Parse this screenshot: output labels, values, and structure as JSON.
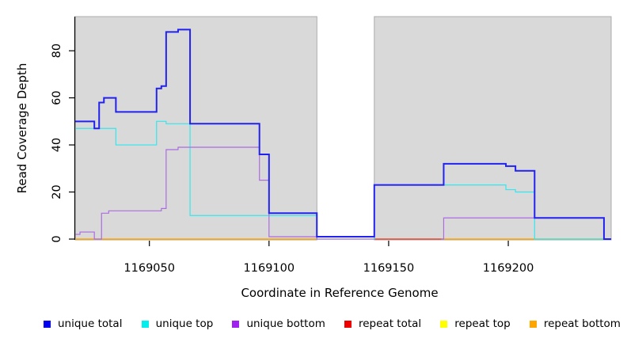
{
  "chart_data": {
    "type": "line",
    "subtype": "step-coverage-plot",
    "title": "",
    "xlabel": "Coordinate in Reference Genome",
    "ylabel": "Read Coverage Depth",
    "xlim": [
      1169019,
      1169243
    ],
    "ylim": [
      0,
      94.5
    ],
    "x_ticks": [
      1169050,
      1169100,
      1169150,
      1169200
    ],
    "y_ticks": [
      0,
      20,
      40,
      60,
      80
    ],
    "grid": false,
    "legend_position": "bottom",
    "band_color": "#d9d9d9",
    "band_border_color": "#ababab",
    "background_bands": [
      {
        "from": 1169019,
        "to": 1169120
      },
      {
        "from": 1169144,
        "to": 1169243
      }
    ],
    "series": [
      {
        "name": "repeat top",
        "color": "#FFFF00",
        "lw": 1.2,
        "segments": [
          {
            "steps": [
              [
                1169144,
                0
              ]
            ],
            "end": 1169173
          }
        ]
      },
      {
        "name": "repeat total",
        "color": "#E02830",
        "lw": 1.2,
        "segments": [
          {
            "steps": [
              [
                1169144,
                0
              ]
            ],
            "end": 1169173
          }
        ]
      },
      {
        "name": "repeat bottom",
        "color": "#FFA500",
        "lw": 1.5,
        "segments": [
          {
            "steps": [
              [
                1169019,
                0
              ]
            ],
            "end": 1169120
          },
          {
            "steps": [
              [
                1169173,
                0
              ]
            ],
            "end": 1169240
          }
        ]
      },
      {
        "name": "unique top",
        "color": "#30E8EE",
        "lw": 1.2,
        "segments": [
          {
            "steps": [
              [
                1169019,
                47
              ],
              [
                1169036,
                40
              ],
              [
                1169053,
                50
              ],
              [
                1169057,
                49
              ],
              [
                1169067,
                10
              ],
              [
                1169120,
                0
              ],
              [
                1169144,
                23
              ],
              [
                1169199,
                21
              ],
              [
                1169203,
                20
              ],
              [
                1169211,
                0
              ]
            ],
            "end": 1169243
          }
        ]
      },
      {
        "name": "unique bottom",
        "color": "#AC6CE0",
        "lw": 1.2,
        "segments": [
          {
            "steps": [
              [
                1169019,
                2
              ],
              [
                1169021,
                3
              ],
              [
                1169027,
                0
              ],
              [
                1169030,
                11
              ],
              [
                1169033,
                12
              ],
              [
                1169055,
                13
              ],
              [
                1169057,
                38
              ],
              [
                1169062,
                39
              ],
              [
                1169096,
                25
              ],
              [
                1169100,
                1
              ],
              [
                1169120,
                0
              ]
            ],
            "end": 1169144
          },
          {
            "steps": [
              [
                1169172,
                0
              ],
              [
                1169173,
                9
              ],
              [
                1169240,
                0
              ]
            ],
            "end": 1169243
          }
        ]
      },
      {
        "name": "unique total",
        "color": "#2222EE",
        "lw": 2,
        "segments": [
          {
            "steps": [
              [
                1169019,
                50
              ],
              [
                1169027,
                47
              ],
              [
                1169029,
                58
              ],
              [
                1169031,
                60
              ],
              [
                1169036,
                54
              ],
              [
                1169053,
                64
              ],
              [
                1169055,
                65
              ],
              [
                1169057,
                88
              ],
              [
                1169062,
                89
              ],
              [
                1169067,
                49
              ],
              [
                1169096,
                36
              ],
              [
                1169100,
                11
              ],
              [
                1169120,
                1
              ],
              [
                1169144,
                23
              ],
              [
                1169173,
                32
              ],
              [
                1169199,
                31
              ],
              [
                1169203,
                29
              ],
              [
                1169211,
                9
              ],
              [
                1169240,
                0
              ]
            ],
            "end": 1169243
          }
        ]
      }
    ],
    "legend": [
      {
        "label": "unique total",
        "color": "#0000EE"
      },
      {
        "label": "unique top",
        "color": "#00EEEE"
      },
      {
        "label": "unique bottom",
        "color": "#A020F0"
      },
      {
        "label": "repeat total",
        "color": "#EE0000"
      },
      {
        "label": "repeat top",
        "color": "#FFFF00"
      },
      {
        "label": "repeat bottom",
        "color": "#FFA500"
      }
    ]
  }
}
